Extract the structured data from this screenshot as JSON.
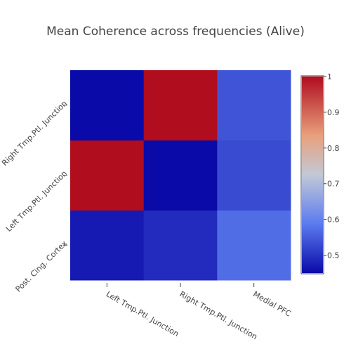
{
  "chart_data": {
    "type": "heatmap",
    "title": "Mean Coherence across frequencies (Alive)",
    "x_categories": [
      "Left Tmp.Ptl. Junction",
      "Right Tmp.Ptl. Junction",
      "Medial PFC"
    ],
    "y_categories": [
      "Post. Cing. Cortex",
      "Left Tmp.Ptl. Junction",
      "Right Tmp.Ptl. Junction"
    ],
    "y_order": "bottom-to-top",
    "values": [
      [
        0.47,
        0.49,
        0.57
      ],
      [
        1.0,
        0.45,
        0.53
      ],
      [
        0.45,
        1.0,
        0.54
      ]
    ],
    "colorscale": {
      "min": 0.45,
      "max": 1.0,
      "stops": [
        [
          0.0,
          "#0a0aa8"
        ],
        [
          0.25,
          "#5b7bef"
        ],
        [
          0.5,
          "#c2c8d6"
        ],
        [
          0.7,
          "#e8a07c"
        ],
        [
          1.0,
          "#b00d1f"
        ]
      ]
    },
    "colorbar_ticks": [
      "0.5",
      "0.6",
      "0.7",
      "0.8",
      "0.9",
      "1"
    ],
    "colorbar_tick_values": [
      0.5,
      0.6,
      0.7,
      0.8,
      0.9,
      1.0
    ],
    "colorbar_placement": "right",
    "grid": false
  }
}
